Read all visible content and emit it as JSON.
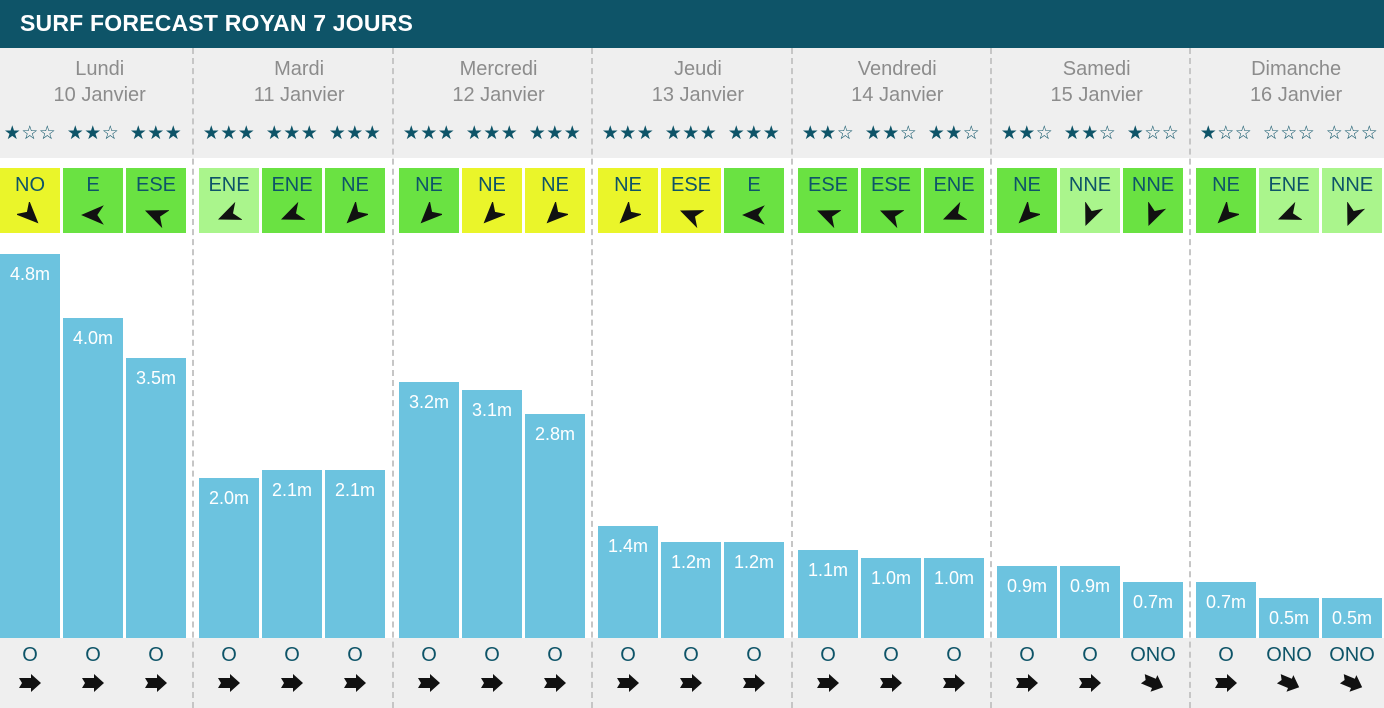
{
  "header": {
    "title": "SURF FORECAST ROYAN 7 JOURS"
  },
  "colors": {
    "header": "#0e5468",
    "bar": "#6cc3df",
    "wind_light": "#aaf58c",
    "wind_medium": "#6ae242",
    "wind_strong": "#eaf52a",
    "text": "#0e5468"
  },
  "icons": {
    "star_full": "★",
    "star_empty": "☆",
    "wind_arrow": "wind-direction-arrow-icon",
    "swell_arrow": "swell-direction-arrow-icon"
  },
  "days": [
    {
      "name": "Lundi",
      "date": "10 Janvier"
    },
    {
      "name": "Mardi",
      "date": "11 Janvier"
    },
    {
      "name": "Mercredi",
      "date": "12 Janvier"
    },
    {
      "name": "Jeudi",
      "date": "13 Janvier"
    },
    {
      "name": "Vendredi",
      "date": "14 Janvier"
    },
    {
      "name": "Samedi",
      "date": "15 Janvier"
    },
    {
      "name": "Dimanche",
      "date": "16 Janvier"
    }
  ],
  "chart_data": {
    "type": "bar",
    "title": "SURF FORECAST ROYAN 7 JOURS",
    "unit": "m",
    "ylim": [
      0,
      4.8
    ],
    "slots": [
      [
        {
          "height": 4.8,
          "label": "4.8m",
          "stars": 1,
          "wind": "NO",
          "wind_deg": 315,
          "wind_strength": "strong",
          "swell": "O",
          "swell_deg": 270
        },
        {
          "height": 4.0,
          "label": "4.0m",
          "stars": 2,
          "wind": "E",
          "wind_deg": 90,
          "wind_strength": "medium",
          "swell": "O",
          "swell_deg": 270
        },
        {
          "height": 3.5,
          "label": "3.5m",
          "stars": 3,
          "wind": "ESE",
          "wind_deg": 112.5,
          "wind_strength": "medium",
          "swell": "O",
          "swell_deg": 270
        }
      ],
      [
        {
          "height": 2.0,
          "label": "2.0m",
          "stars": 3,
          "wind": "ENE",
          "wind_deg": 67.5,
          "wind_strength": "light",
          "swell": "O",
          "swell_deg": 270
        },
        {
          "height": 2.1,
          "label": "2.1m",
          "stars": 3,
          "wind": "ENE",
          "wind_deg": 67.5,
          "wind_strength": "medium",
          "swell": "O",
          "swell_deg": 270
        },
        {
          "height": 2.1,
          "label": "2.1m",
          "stars": 3,
          "wind": "NE",
          "wind_deg": 45,
          "wind_strength": "medium",
          "swell": "O",
          "swell_deg": 270
        }
      ],
      [
        {
          "height": 3.2,
          "label": "3.2m",
          "stars": 3,
          "wind": "NE",
          "wind_deg": 45,
          "wind_strength": "medium",
          "swell": "O",
          "swell_deg": 270
        },
        {
          "height": 3.1,
          "label": "3.1m",
          "stars": 3,
          "wind": "NE",
          "wind_deg": 45,
          "wind_strength": "strong",
          "swell": "O",
          "swell_deg": 270
        },
        {
          "height": 2.8,
          "label": "2.8m",
          "stars": 3,
          "wind": "NE",
          "wind_deg": 45,
          "wind_strength": "strong",
          "swell": "O",
          "swell_deg": 270
        }
      ],
      [
        {
          "height": 1.4,
          "label": "1.4m",
          "stars": 3,
          "wind": "NE",
          "wind_deg": 45,
          "wind_strength": "strong",
          "swell": "O",
          "swell_deg": 270
        },
        {
          "height": 1.2,
          "label": "1.2m",
          "stars": 3,
          "wind": "ESE",
          "wind_deg": 112.5,
          "wind_strength": "strong",
          "swell": "O",
          "swell_deg": 270
        },
        {
          "height": 1.2,
          "label": "1.2m",
          "stars": 3,
          "wind": "E",
          "wind_deg": 90,
          "wind_strength": "medium",
          "swell": "O",
          "swell_deg": 270
        }
      ],
      [
        {
          "height": 1.1,
          "label": "1.1m",
          "stars": 2,
          "wind": "ESE",
          "wind_deg": 112.5,
          "wind_strength": "medium",
          "swell": "O",
          "swell_deg": 270
        },
        {
          "height": 1.0,
          "label": "1.0m",
          "stars": 2,
          "wind": "ESE",
          "wind_deg": 112.5,
          "wind_strength": "medium",
          "swell": "O",
          "swell_deg": 270
        },
        {
          "height": 1.0,
          "label": "1.0m",
          "stars": 2,
          "wind": "ENE",
          "wind_deg": 67.5,
          "wind_strength": "medium",
          "swell": "O",
          "swell_deg": 270
        }
      ],
      [
        {
          "height": 0.9,
          "label": "0.9m",
          "stars": 2,
          "wind": "NE",
          "wind_deg": 45,
          "wind_strength": "medium",
          "swell": "O",
          "swell_deg": 270
        },
        {
          "height": 0.9,
          "label": "0.9m",
          "stars": 2,
          "wind": "NNE",
          "wind_deg": 22.5,
          "wind_strength": "light",
          "swell": "O",
          "swell_deg": 270
        },
        {
          "height": 0.7,
          "label": "0.7m",
          "stars": 1,
          "wind": "NNE",
          "wind_deg": 22.5,
          "wind_strength": "medium",
          "swell": "ONO",
          "swell_deg": 292.5
        }
      ],
      [
        {
          "height": 0.7,
          "label": "0.7m",
          "stars": 1,
          "wind": "NE",
          "wind_deg": 45,
          "wind_strength": "medium",
          "swell": "O",
          "swell_deg": 270
        },
        {
          "height": 0.5,
          "label": "0.5m",
          "stars": 0,
          "wind": "ENE",
          "wind_deg": 67.5,
          "wind_strength": "light",
          "swell": "ONO",
          "swell_deg": 292.5
        },
        {
          "height": 0.5,
          "label": "0.5m",
          "stars": 0,
          "wind": "NNE",
          "wind_deg": 22.5,
          "wind_strength": "light",
          "swell": "ONO",
          "swell_deg": 292.5
        }
      ]
    ]
  }
}
